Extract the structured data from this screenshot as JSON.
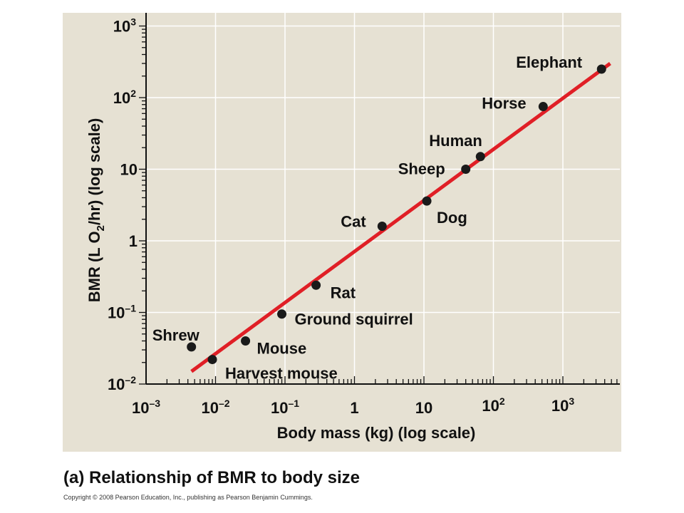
{
  "caption": "(a) Relationship of BMR to body size",
  "copyright": "Copyright © 2008 Pearson Education, Inc., publishing as Pearson Benjamin Cummings.",
  "colors": {
    "panel_bg": "#e6e1d3",
    "grid": "#ffffff",
    "line": "#e01f26",
    "point": "#1a1a1a"
  },
  "chart_data": {
    "type": "scatter",
    "title": "",
    "xlabel": "Body mass (kg) (log scale)",
    "ylabel": "BMR (L O2/hr) (log scale)",
    "x_scale": "log",
    "y_scale": "log",
    "xlim": [
      0.001,
      5000
    ],
    "ylim": [
      0.01,
      1000
    ],
    "grid": true,
    "x_ticks": [
      {
        "base": "10",
        "exp": "–3",
        "value": 0.001
      },
      {
        "base": "10",
        "exp": "–2",
        "value": 0.01
      },
      {
        "base": "10",
        "exp": "–1",
        "value": 0.1
      },
      {
        "base": "1",
        "exp": "",
        "value": 1
      },
      {
        "base": "10",
        "exp": "",
        "value": 10
      },
      {
        "base": "10",
        "exp": "2",
        "value": 100
      },
      {
        "base": "10",
        "exp": "3",
        "value": 1000
      }
    ],
    "y_ticks": [
      {
        "base": "10",
        "exp": "–2",
        "value": 0.01
      },
      {
        "base": "10",
        "exp": "–1",
        "value": 0.1
      },
      {
        "base": "1",
        "exp": "",
        "value": 1
      },
      {
        "base": "10",
        "exp": "",
        "value": 10
      },
      {
        "base": "10",
        "exp": "2",
        "value": 100
      },
      {
        "base": "10",
        "exp": "3",
        "value": 1000
      }
    ],
    "points": [
      {
        "label": "Shrew",
        "x": 0.0045,
        "y": 0.033
      },
      {
        "label": "Harvest mouse",
        "x": 0.009,
        "y": 0.022
      },
      {
        "label": "Mouse",
        "x": 0.027,
        "y": 0.04
      },
      {
        "label": "Ground squirrel",
        "x": 0.09,
        "y": 0.095
      },
      {
        "label": "Rat",
        "x": 0.28,
        "y": 0.24
      },
      {
        "label": "Cat",
        "x": 2.5,
        "y": 1.6
      },
      {
        "label": "Dog",
        "x": 11,
        "y": 3.6
      },
      {
        "label": "Sheep",
        "x": 40,
        "y": 10
      },
      {
        "label": "Human",
        "x": 65,
        "y": 15
      },
      {
        "label": "Horse",
        "x": 520,
        "y": 75
      },
      {
        "label": "Elephant",
        "x": 3600,
        "y": 250
      }
    ],
    "fit_line": {
      "x": [
        0.0045,
        4800
      ],
      "y": [
        0.015,
        300
      ]
    }
  }
}
